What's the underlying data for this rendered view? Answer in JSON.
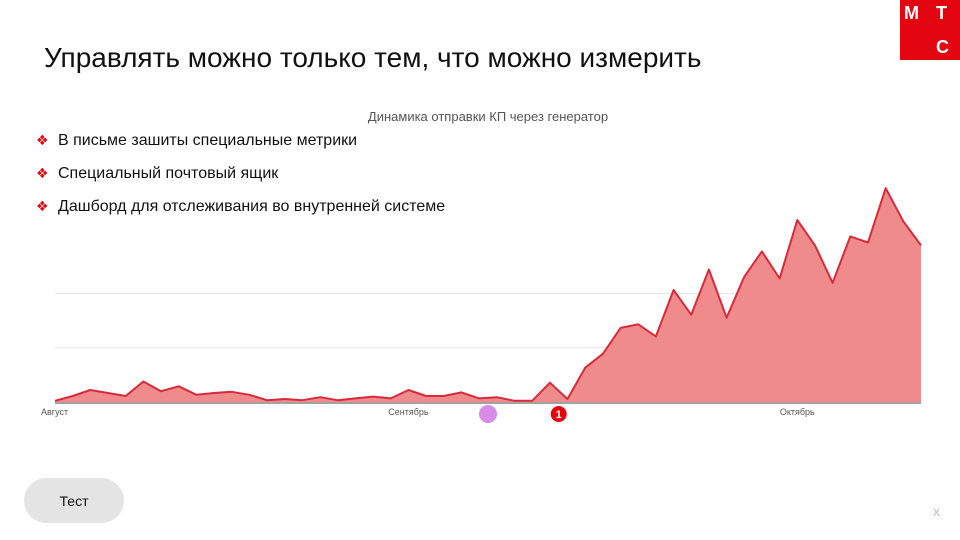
{
  "logo": {
    "letters": [
      "М",
      "Т",
      "С"
    ]
  },
  "slide": {
    "title": "Управлять можно только тем, что можно измерить",
    "bullets": [
      "В письме зашиты специальные метрики",
      "Специальный почтовый ящик",
      "Дашборд для отслеживания во внутренней системе"
    ]
  },
  "chart_data": {
    "type": "area",
    "title": "Динамика отправки КП через генератор",
    "x_tick_labels": [
      "Август",
      "Сентябрь",
      "Октябрь"
    ],
    "x_tick_indices": [
      0,
      20,
      42
    ],
    "values": [
      0.2,
      1.0,
      2.0,
      1.5,
      1.0,
      3.4,
      1.8,
      2.6,
      1.2,
      1.5,
      1.7,
      1.2,
      0.3,
      0.5,
      0.3,
      0.8,
      0.3,
      0.6,
      0.9,
      0.6,
      2.0,
      1.0,
      1.0,
      1.6,
      0.6,
      0.8,
      0.2,
      0.2,
      3.2,
      0.5,
      5.7,
      8.0,
      12.3,
      12.9,
      10.9,
      18.6,
      14.5,
      22.0,
      14.0,
      20.8,
      25.0,
      20.5,
      30.2,
      26.0,
      19.8,
      27.5,
      26.5,
      35.5,
      30.0,
      26.0
    ],
    "ylim": [
      0,
      44
    ],
    "grid_lines": [
      9,
      18
    ],
    "fill_color": "#f08b8c",
    "line_color": "#d72a3a",
    "markers": [
      {
        "index": 24.5,
        "label": "",
        "color": "#d98be8"
      },
      {
        "index": 28.5,
        "label": "1",
        "color": "#e30611"
      }
    ]
  },
  "ui": {
    "test_button": "Тест",
    "close": "x"
  }
}
